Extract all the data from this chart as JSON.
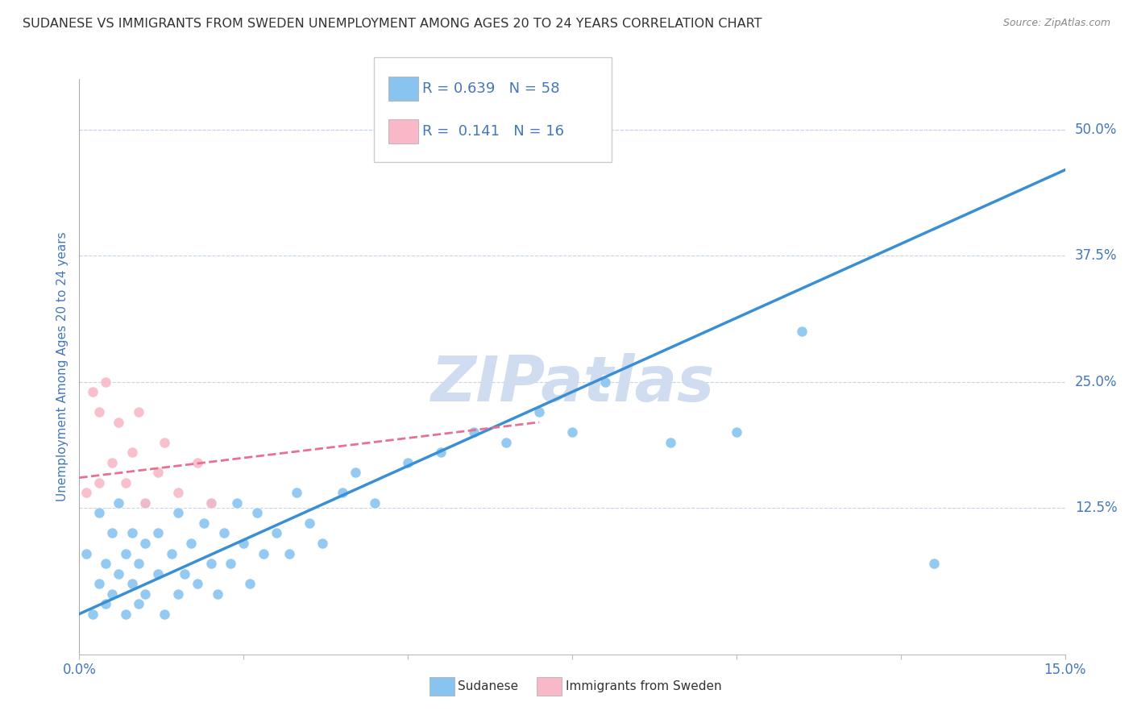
{
  "title": "SUDANESE VS IMMIGRANTS FROM SWEDEN UNEMPLOYMENT AMONG AGES 20 TO 24 YEARS CORRELATION CHART",
  "source": "Source: ZipAtlas.com",
  "ylabel": "Unemployment Among Ages 20 to 24 years",
  "xlim": [
    0.0,
    0.15
  ],
  "ylim": [
    -0.02,
    0.55
  ],
  "ytick_labels_right": [
    "12.5%",
    "25.0%",
    "37.5%",
    "50.0%"
  ],
  "yticks_right": [
    0.125,
    0.25,
    0.375,
    0.5
  ],
  "blue_R": 0.639,
  "blue_N": 58,
  "pink_R": 0.141,
  "pink_N": 16,
  "blue_color": "#89c4f0",
  "pink_color": "#f8b8c8",
  "blue_line_color": "#3a8fd4",
  "pink_line_color": "#e87090",
  "grid_color": "#c8d4e8",
  "background_color": "#ffffff",
  "watermark": "ZIPatlas",
  "watermark_color": "#d0ddf0",
  "title_color": "#333333",
  "axis_label_color": "#4477bb",
  "blue_scatter_x": [
    0.001,
    0.002,
    0.003,
    0.003,
    0.004,
    0.004,
    0.005,
    0.005,
    0.006,
    0.006,
    0.007,
    0.007,
    0.008,
    0.008,
    0.009,
    0.009,
    0.01,
    0.01,
    0.01,
    0.012,
    0.012,
    0.013,
    0.014,
    0.015,
    0.015,
    0.016,
    0.017,
    0.018,
    0.019,
    0.02,
    0.02,
    0.021,
    0.022,
    0.023,
    0.024,
    0.025,
    0.026,
    0.027,
    0.028,
    0.03,
    0.032,
    0.033,
    0.035,
    0.037,
    0.04,
    0.042,
    0.045,
    0.05,
    0.055,
    0.06,
    0.065,
    0.07,
    0.075,
    0.08,
    0.09,
    0.1,
    0.11,
    0.13
  ],
  "blue_scatter_y": [
    0.08,
    0.02,
    0.05,
    0.12,
    0.03,
    0.07,
    0.04,
    0.1,
    0.06,
    0.13,
    0.02,
    0.08,
    0.05,
    0.1,
    0.03,
    0.07,
    0.04,
    0.09,
    0.13,
    0.06,
    0.1,
    0.02,
    0.08,
    0.04,
    0.12,
    0.06,
    0.09,
    0.05,
    0.11,
    0.07,
    0.13,
    0.04,
    0.1,
    0.07,
    0.13,
    0.09,
    0.05,
    0.12,
    0.08,
    0.1,
    0.08,
    0.14,
    0.11,
    0.09,
    0.14,
    0.16,
    0.13,
    0.17,
    0.18,
    0.2,
    0.19,
    0.22,
    0.2,
    0.25,
    0.19,
    0.2,
    0.3,
    0.07
  ],
  "pink_scatter_x": [
    0.001,
    0.002,
    0.003,
    0.003,
    0.004,
    0.005,
    0.006,
    0.007,
    0.008,
    0.009,
    0.01,
    0.012,
    0.013,
    0.015,
    0.018,
    0.02
  ],
  "pink_scatter_y": [
    0.14,
    0.24,
    0.15,
    0.22,
    0.25,
    0.17,
    0.21,
    0.15,
    0.18,
    0.22,
    0.13,
    0.16,
    0.19,
    0.14,
    0.17,
    0.13
  ],
  "blue_line_x": [
    0.0,
    0.15
  ],
  "blue_line_y": [
    0.02,
    0.46
  ],
  "pink_line_x": [
    0.0,
    0.07
  ],
  "pink_line_y": [
    0.155,
    0.21
  ]
}
